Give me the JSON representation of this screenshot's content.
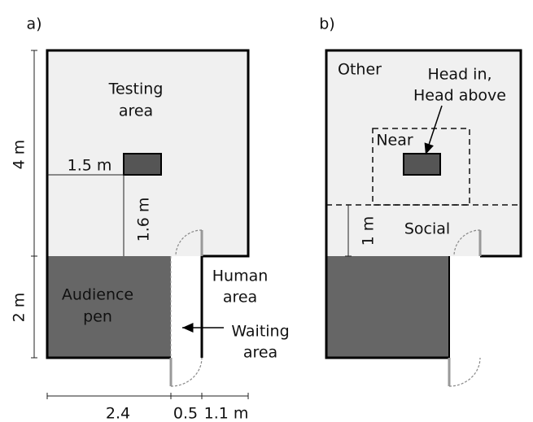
{
  "panel_a": {
    "label": "a)",
    "testing_area": [
      "Testing",
      "area"
    ],
    "audience_pen": [
      "Audience",
      "pen"
    ],
    "human_area": [
      "Human",
      "area"
    ],
    "waiting_area": [
      "Waiting",
      "area"
    ],
    "dim_horizontal": "1.5 m",
    "dim_vertical": "1.6 m",
    "dim_left_top": "4 m",
    "dim_left_bottom": "2 m",
    "dim_bottom": [
      "2.4",
      "0.5",
      "1.1 m"
    ]
  },
  "panel_b": {
    "label": "b)",
    "other": "Other",
    "head": [
      "Head in,",
      "Head above"
    ],
    "near": "Near",
    "social": "Social",
    "dim_social": "1 m"
  }
}
